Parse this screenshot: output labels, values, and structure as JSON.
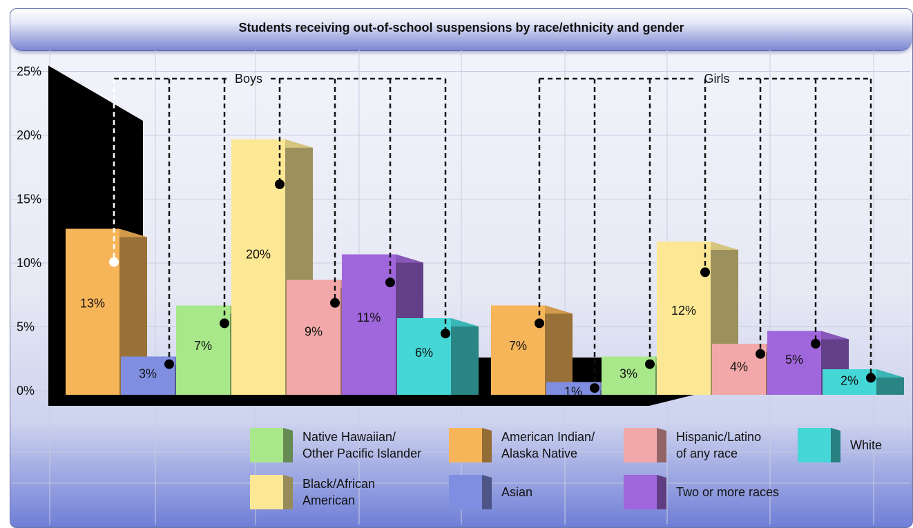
{
  "chart_data": {
    "type": "bar",
    "title": "Students receiving out-of-school suspensions by race/ethnicity and gender",
    "xlabel": "",
    "ylabel": "",
    "ylim": [
      0,
      25
    ],
    "yticks": [
      "0%",
      "5%",
      "10%",
      "15%",
      "20%",
      "25%"
    ],
    "grid": true,
    "legend_position": "bottom",
    "groups": [
      {
        "name": "Boys",
        "bars": [
          {
            "category": "American Indian/ Alaska Native",
            "value": 13,
            "label": "13%"
          },
          {
            "category": "Asian",
            "value": 3,
            "label": "3%"
          },
          {
            "category": "Native Hawaiian/ Other Pacific Islander",
            "value": 7,
            "label": "7%"
          },
          {
            "category": "Black/African American",
            "value": 20,
            "label": "20%"
          },
          {
            "category": "Hispanic/Latino of any race",
            "value": 9,
            "label": "9%"
          },
          {
            "category": "Two or more races",
            "value": 11,
            "label": "11%"
          },
          {
            "category": "White",
            "value": 6,
            "label": "6%"
          }
        ]
      },
      {
        "name": "Girls",
        "bars": [
          {
            "category": "American Indian/ Alaska Native",
            "value": 7,
            "label": "7%"
          },
          {
            "category": "Asian",
            "value": 1,
            "label": "1%"
          },
          {
            "category": "Native Hawaiian/ Other Pacific Islander",
            "value": 3,
            "label": "3%"
          },
          {
            "category": "Black/African American",
            "value": 12,
            "label": "12%"
          },
          {
            "category": "Hispanic/Latino of any race",
            "value": 4,
            "label": "4%"
          },
          {
            "category": "Two or more races",
            "value": 5,
            "label": "5%"
          },
          {
            "category": "White",
            "value": 2,
            "label": "2%"
          }
        ]
      }
    ],
    "legend": [
      {
        "category": "Native Hawaiian/ Other Pacific Islander",
        "lines": [
          "Native Hawaiian/",
          "Other Pacific Islander"
        ]
      },
      {
        "category": "American Indian/ Alaska Native",
        "lines": [
          "American Indian/",
          "Alaska Native"
        ]
      },
      {
        "category": "Hispanic/Latino of any race",
        "lines": [
          "Hispanic/Latino",
          "of any race"
        ]
      },
      {
        "category": "White",
        "lines": [
          "White"
        ]
      },
      {
        "category": "Black/African American",
        "lines": [
          "Black/African",
          "American"
        ]
      },
      {
        "category": "Asian",
        "lines": [
          "Asian"
        ]
      },
      {
        "category": "Two or more races",
        "lines": [
          "Two or more races"
        ]
      }
    ],
    "colors": {
      "American Indian/ Alaska Native": "#f7b55a",
      "Asian": "#7f8ee0",
      "Native Hawaiian/ Other Pacific Islander": "#a8e88a",
      "Black/African American": "#fce894",
      "Hispanic/Latino of any race": "#f2a8a8",
      "Two or more races": "#a066db",
      "White": "#45d6d6"
    }
  }
}
